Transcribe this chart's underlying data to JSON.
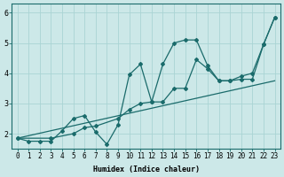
{
  "title": "",
  "xlabel": "Humidex (Indice chaleur)",
  "bg_color": "#cce8e8",
  "line_color": "#1a6b6b",
  "xlim": [
    -0.5,
    23.5
  ],
  "ylim": [
    1.5,
    6.3
  ],
  "xticks": [
    0,
    1,
    2,
    3,
    4,
    5,
    6,
    7,
    8,
    9,
    10,
    11,
    12,
    13,
    14,
    15,
    16,
    17,
    18,
    19,
    20,
    21,
    22,
    23
  ],
  "yticks": [
    2,
    3,
    4,
    5,
    6
  ],
  "series1_x": [
    0,
    1,
    2,
    3,
    4,
    5,
    6,
    7,
    8,
    9,
    10,
    11,
    12,
    13,
    14,
    15,
    16,
    17,
    18,
    19,
    20,
    21,
    22,
    23
  ],
  "series1_y": [
    1.85,
    1.75,
    1.75,
    1.75,
    2.1,
    2.5,
    2.6,
    2.05,
    1.65,
    2.3,
    3.95,
    4.3,
    3.05,
    4.3,
    5.0,
    5.1,
    5.1,
    4.25,
    3.75,
    3.75,
    3.9,
    4.0,
    4.95,
    5.85
  ],
  "series2_x": [
    0,
    3,
    5,
    6,
    7,
    9,
    10,
    11,
    12,
    13,
    14,
    15,
    16,
    17,
    18,
    19,
    20,
    21,
    22,
    23
  ],
  "series2_y": [
    1.85,
    1.85,
    2.0,
    2.2,
    2.25,
    2.5,
    2.8,
    3.0,
    3.05,
    3.05,
    3.5,
    3.5,
    4.45,
    4.15,
    3.75,
    3.75,
    3.8,
    3.8,
    4.95,
    5.85
  ],
  "series3_x": [
    0,
    23
  ],
  "series3_y": [
    1.85,
    3.75
  ],
  "grid_color": "#aad4d4",
  "marker": "D",
  "markersize": 2.0,
  "linewidth": 0.9,
  "xlabel_fontsize": 6.0,
  "tick_fontsize": 5.5
}
